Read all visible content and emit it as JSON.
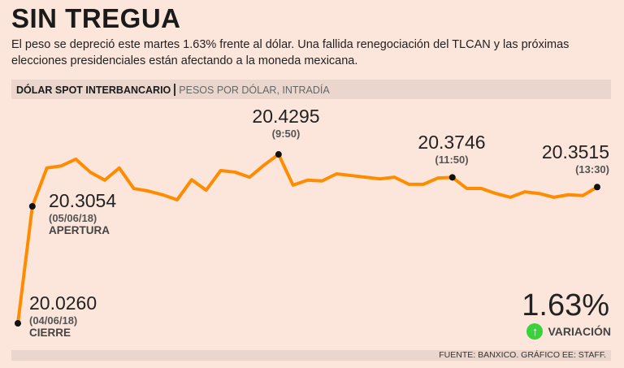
{
  "header": {
    "title": "SIN TREGUA",
    "subtitle": "El peso se depreció este martes 1.63% frente al dólar. Una fallida renegociación del TLCAN y las próximas elecciones presidenciales están afectando a la moneda mexicana."
  },
  "chart_header": {
    "main": "DÓLAR SPOT INTERBANCARIO",
    "sub": "PESOS POR DÓLAR, INTRADÍA"
  },
  "chart_data": {
    "type": "line",
    "title": "DÓLAR SPOT INTERBANCARIO",
    "subtitle": "PESOS POR DÓLAR, INTRADÍA",
    "line_color": "#ff8c00",
    "grid": false,
    "series": [
      {
        "values": [
          20.026,
          20.3054,
          20.397,
          20.402,
          20.418,
          20.387,
          20.368,
          20.397,
          20.348,
          20.342,
          20.333,
          20.321,
          20.369,
          20.344,
          20.391,
          20.387,
          20.375,
          20.404,
          20.4295,
          20.356,
          20.368,
          20.366,
          20.383,
          20.379,
          20.375,
          20.371,
          20.375,
          20.358,
          20.358,
          20.373,
          20.3746,
          20.348,
          20.348,
          20.336,
          20.327,
          20.34,
          20.336,
          20.327,
          20.333,
          20.331,
          20.3515
        ]
      }
    ],
    "annotations": [
      {
        "index": 0,
        "value": "20.0260",
        "time": "(04/06/18)",
        "label": "CIERRE"
      },
      {
        "index": 1,
        "value": "20.3054",
        "time": "(05/06/18)",
        "label": "APERTURA"
      },
      {
        "index": 18,
        "value": "20.4295",
        "time": "(9:50)"
      },
      {
        "index": 30,
        "value": "20.3746",
        "time": "(11:50)"
      },
      {
        "index": 40,
        "value": "20.3515",
        "time": "(13:30)"
      }
    ]
  },
  "variation": {
    "value": "1.63%",
    "label": "VARIACIÓN",
    "direction": "up",
    "icon": "arrow-up-icon",
    "color": "#3bd13b"
  },
  "footer": {
    "source": "FUENTE: BANXICO. GRÁFICO EE: STAFF."
  }
}
